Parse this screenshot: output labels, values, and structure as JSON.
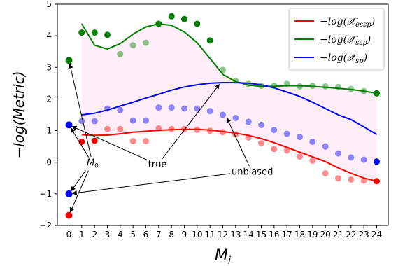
{
  "chart_data": {
    "type": "line",
    "xlabel": "M_i",
    "ylabel": "-log(Metric)",
    "xlim": [
      -0.9,
      24.9
    ],
    "ylim": [
      -2,
      5
    ],
    "x_ticks": [
      0,
      1,
      2,
      3,
      4,
      5,
      6,
      7,
      8,
      9,
      10,
      11,
      12,
      13,
      14,
      15,
      16,
      17,
      18,
      19,
      20,
      21,
      22,
      23,
      24
    ],
    "y_ticks": [
      -2,
      -1,
      0,
      1,
      2,
      3,
      4,
      5
    ],
    "grid": false,
    "legend": {
      "position": "top-right",
      "entries": [
        {
          "label": "−log(𝒳essp)",
          "color": "#ff0000"
        },
        {
          "label": "−log(𝒳ssp)",
          "color": "#008000"
        },
        {
          "label": "−log(𝒳sp)",
          "color": "#0000ff"
        }
      ]
    },
    "series": [
      {
        "color": "#ff0000",
        "line_x": [
          1,
          2,
          3,
          4,
          5,
          6,
          7,
          8,
          9,
          10,
          11,
          12,
          13,
          14,
          15,
          16,
          17,
          18,
          19,
          20,
          21,
          22,
          23,
          24
        ],
        "line_y": [
          0.87,
          0.85,
          0.86,
          0.9,
          0.95,
          0.98,
          1.01,
          1.03,
          1.04,
          1.04,
          1.02,
          0.97,
          0.92,
          0.85,
          0.75,
          0.62,
          0.47,
          0.32,
          0.17,
          0.02,
          -0.18,
          -0.35,
          -0.5,
          -0.6
        ],
        "points_x": [
          0,
          1,
          2,
          3,
          4,
          5,
          6,
          7,
          8,
          9,
          10,
          11,
          12,
          13,
          14,
          15,
          16,
          17,
          18,
          19,
          20,
          21,
          22,
          23,
          24
        ],
        "points_y": [
          -1.68,
          0.65,
          0.68,
          1.05,
          1.05,
          0.67,
          0.67,
          1.07,
          1.05,
          1.05,
          1.03,
          1.0,
          0.95,
          0.88,
          0.78,
          0.6,
          0.42,
          0.37,
          0.18,
          0.05,
          -0.35,
          -0.51,
          -0.55,
          -0.58,
          -0.6
        ],
        "faded_points": [
          3,
          4,
          5,
          6,
          7,
          8,
          9,
          10,
          11,
          12,
          13,
          14,
          15,
          16,
          17,
          18,
          19,
          20,
          21,
          22,
          23
        ],
        "highlight_point": 0
      },
      {
        "color": "#008000",
        "line_x": [
          1,
          2,
          3,
          4,
          5,
          6,
          7,
          8,
          9,
          10,
          11,
          12,
          13,
          14,
          15,
          16,
          17,
          18,
          19,
          20,
          21,
          22,
          23,
          24
        ],
        "line_y": [
          4.38,
          3.7,
          3.58,
          3.75,
          4.05,
          4.28,
          4.38,
          4.33,
          4.12,
          3.78,
          3.28,
          2.78,
          2.55,
          2.44,
          2.4,
          2.4,
          2.42,
          2.42,
          2.4,
          2.37,
          2.34,
          2.3,
          2.25,
          2.18
        ],
        "points_x": [
          0,
          1,
          2,
          3,
          4,
          5,
          6,
          7,
          8,
          9,
          10,
          11,
          12,
          13,
          14,
          15,
          16,
          17,
          18,
          19,
          20,
          21,
          22,
          23,
          24
        ],
        "points_y": [
          3.22,
          4.1,
          4.1,
          4.03,
          3.42,
          3.7,
          3.78,
          4.38,
          4.62,
          4.53,
          4.38,
          3.85,
          2.92,
          2.58,
          2.48,
          2.42,
          2.42,
          2.48,
          2.4,
          2.42,
          2.4,
          2.38,
          2.32,
          2.25,
          2.18
        ],
        "faded_points": [
          4,
          5,
          6,
          12,
          13,
          14,
          15,
          16,
          17,
          18,
          19,
          20,
          21,
          22,
          23
        ],
        "highlight_point": 0
      },
      {
        "color": "#0000ff",
        "line_x": [
          1,
          2,
          3,
          4,
          5,
          6,
          7,
          8,
          9,
          10,
          11,
          12,
          13,
          14,
          15,
          16,
          17,
          18,
          19,
          20,
          21,
          22,
          23,
          24
        ],
        "line_y": [
          1.5,
          1.55,
          1.65,
          1.78,
          1.9,
          2.03,
          2.15,
          2.28,
          2.38,
          2.45,
          2.5,
          2.52,
          2.52,
          2.5,
          2.45,
          2.35,
          2.22,
          2.08,
          1.9,
          1.7,
          1.5,
          1.35,
          1.12,
          0.88
        ],
        "points_x": [
          0,
          1,
          2,
          3,
          4,
          5,
          6,
          7,
          8,
          9,
          10,
          11,
          12,
          13,
          14,
          15,
          16,
          17,
          18,
          19,
          20,
          21,
          22,
          23,
          24
        ],
        "points_y": [
          1.18,
          1.3,
          1.3,
          1.7,
          1.65,
          1.32,
          1.32,
          1.73,
          1.73,
          1.7,
          1.7,
          1.62,
          1.5,
          1.4,
          1.28,
          1.18,
          1.02,
          0.9,
          0.8,
          0.65,
          0.5,
          0.28,
          0.15,
          0.08,
          0.02
        ],
        "faded_points": [
          1,
          2,
          3,
          4,
          5,
          6,
          7,
          8,
          9,
          10,
          11,
          12,
          13,
          14,
          15,
          16,
          17,
          18,
          19,
          20,
          21,
          22,
          23
        ],
        "highlight_point": 0
      }
    ],
    "fill_between": {
      "x_from": 1,
      "x_to": 24,
      "color": "#ffe0f0"
    },
    "annotations": [
      {
        "text": "M0",
        "x": 1.85,
        "y": 0.0,
        "arrows_to": [
          [
            0,
            3.22
          ],
          [
            0,
            1.18
          ],
          [
            0,
            -1.0
          ],
          [
            0,
            -1.68
          ]
        ]
      },
      {
        "text": "true",
        "x": 6.9,
        "y": -0.05,
        "arrows_to": [
          [
            0,
            1.18
          ],
          [
            11.9,
            2.55
          ]
        ]
      },
      {
        "text": "unbiased",
        "x": 14.3,
        "y": -0.28,
        "arrows_to": [
          [
            0,
            -1.0
          ],
          [
            12.2,
            1.5
          ]
        ]
      }
    ],
    "blue_extra_point": {
      "x": 0,
      "y": -1.0
    }
  }
}
